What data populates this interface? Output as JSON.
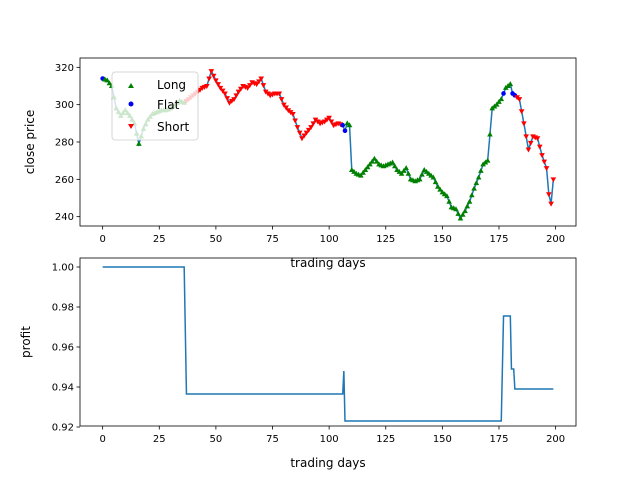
{
  "colors": {
    "line": "#1f77b4",
    "long": "#008000",
    "flat": "#0000ff",
    "short": "#ff0000",
    "axis": "#000000"
  },
  "chart_data": [
    {
      "type": "line",
      "title": "",
      "xlabel": "trading days",
      "ylabel": "close price",
      "xlim": [
        -10,
        209
      ],
      "ylim": [
        235,
        325
      ],
      "xticks": [
        0,
        25,
        50,
        75,
        100,
        125,
        150,
        175,
        200
      ],
      "yticks": [
        240,
        260,
        280,
        300,
        320
      ],
      "grid": false,
      "legend": {
        "position": "upper-left",
        "entries": [
          {
            "label": "Long",
            "marker": "triangle-up",
            "color": "#008000"
          },
          {
            "label": "Flat",
            "marker": "circle",
            "color": "#0000ff"
          },
          {
            "label": "Short",
            "marker": "triangle-down",
            "color": "#ff0000"
          }
        ]
      },
      "price_anchors": [
        [
          0,
          314
        ],
        [
          2,
          313
        ],
        [
          4,
          310
        ],
        [
          6,
          298
        ],
        [
          8,
          294
        ],
        [
          10,
          297
        ],
        [
          12,
          294
        ],
        [
          14,
          290
        ],
        [
          16,
          279
        ],
        [
          18,
          287
        ],
        [
          20,
          292
        ],
        [
          22,
          295
        ],
        [
          24,
          296
        ],
        [
          26,
          297
        ],
        [
          28,
          297
        ],
        [
          30,
          298
        ],
        [
          32,
          300
        ],
        [
          34,
          302
        ],
        [
          36,
          301
        ],
        [
          38,
          303
        ],
        [
          40,
          305
        ],
        [
          42,
          307
        ],
        [
          44,
          309
        ],
        [
          46,
          310
        ],
        [
          48,
          318
        ],
        [
          50,
          313
        ],
        [
          52,
          309
        ],
        [
          54,
          306
        ],
        [
          56,
          301
        ],
        [
          58,
          303
        ],
        [
          60,
          307
        ],
        [
          62,
          310
        ],
        [
          64,
          309
        ],
        [
          66,
          312
        ],
        [
          68,
          311
        ],
        [
          70,
          314
        ],
        [
          72,
          307
        ],
        [
          74,
          305
        ],
        [
          76,
          306
        ],
        [
          78,
          306
        ],
        [
          80,
          300
        ],
        [
          82,
          297
        ],
        [
          84,
          295
        ],
        [
          86,
          288
        ],
        [
          88,
          282
        ],
        [
          90,
          285
        ],
        [
          92,
          288
        ],
        [
          94,
          292
        ],
        [
          96,
          290
        ],
        [
          98,
          291
        ],
        [
          100,
          293
        ],
        [
          102,
          289
        ],
        [
          104,
          290
        ],
        [
          106,
          289
        ],
        [
          107,
          286
        ],
        [
          108,
          290
        ],
        [
          109,
          289
        ],
        [
          110,
          265
        ],
        [
          112,
          263
        ],
        [
          114,
          262
        ],
        [
          116,
          265
        ],
        [
          118,
          268
        ],
        [
          120,
          271
        ],
        [
          122,
          268
        ],
        [
          124,
          267
        ],
        [
          126,
          268
        ],
        [
          128,
          269
        ],
        [
          130,
          265
        ],
        [
          132,
          263
        ],
        [
          134,
          266
        ],
        [
          136,
          260
        ],
        [
          138,
          259
        ],
        [
          140,
          260
        ],
        [
          142,
          265
        ],
        [
          144,
          263
        ],
        [
          146,
          261
        ],
        [
          148,
          256
        ],
        [
          150,
          253
        ],
        [
          152,
          251
        ],
        [
          154,
          245
        ],
        [
          156,
          244
        ],
        [
          158,
          239
        ],
        [
          160,
          243
        ],
        [
          162,
          248
        ],
        [
          164,
          255
        ],
        [
          166,
          261
        ],
        [
          168,
          268
        ],
        [
          170,
          270
        ],
        [
          172,
          298
        ],
        [
          174,
          300
        ],
        [
          176,
          303
        ],
        [
          178,
          309
        ],
        [
          180,
          311
        ],
        [
          181,
          306
        ],
        [
          182,
          305
        ],
        [
          184,
          303
        ],
        [
          186,
          290
        ],
        [
          188,
          276
        ],
        [
          190,
          283
        ],
        [
          192,
          282
        ],
        [
          194,
          273
        ],
        [
          196,
          266
        ],
        [
          197,
          252
        ],
        [
          198,
          247
        ],
        [
          199,
          260
        ]
      ],
      "position_segments": [
        {
          "from": 0,
          "to": 0,
          "type": "flat"
        },
        {
          "from": 1,
          "to": 36,
          "type": "long"
        },
        {
          "from": 37,
          "to": 105,
          "type": "short"
        },
        {
          "from": 106,
          "to": 106,
          "type": "flat"
        },
        {
          "from": 107,
          "to": 107,
          "type": "flat"
        },
        {
          "from": 108,
          "to": 176,
          "type": "long"
        },
        {
          "from": 177,
          "to": 177,
          "type": "flat"
        },
        {
          "from": 178,
          "to": 180,
          "type": "long"
        },
        {
          "from": 181,
          "to": 181,
          "type": "flat"
        },
        {
          "from": 182,
          "to": 182,
          "type": "flat"
        },
        {
          "from": 183,
          "to": 199,
          "type": "short"
        }
      ]
    },
    {
      "type": "line",
      "title": "",
      "xlabel": "trading days",
      "ylabel": "profit",
      "xlim": [
        -10,
        209
      ],
      "ylim": [
        0.9205,
        1.0045
      ],
      "xticks": [
        0,
        25,
        50,
        75,
        100,
        125,
        150,
        175,
        200
      ],
      "yticks": [
        0.92,
        0.94,
        0.96,
        0.98,
        1.0
      ],
      "ytick_labels": [
        "0.92",
        "0.94",
        "0.96",
        "0.98",
        "1.00"
      ],
      "grid": false,
      "points": [
        [
          0,
          1.0
        ],
        [
          36,
          1.0
        ],
        [
          37,
          0.9365
        ],
        [
          106,
          0.9365
        ],
        [
          106.5,
          0.948
        ],
        [
          107,
          0.923
        ],
        [
          176,
          0.923
        ],
        [
          177,
          0.9755
        ],
        [
          180,
          0.9755
        ],
        [
          180.5,
          0.949
        ],
        [
          181.5,
          0.949
        ],
        [
          182,
          0.939
        ],
        [
          199,
          0.939
        ]
      ]
    }
  ]
}
